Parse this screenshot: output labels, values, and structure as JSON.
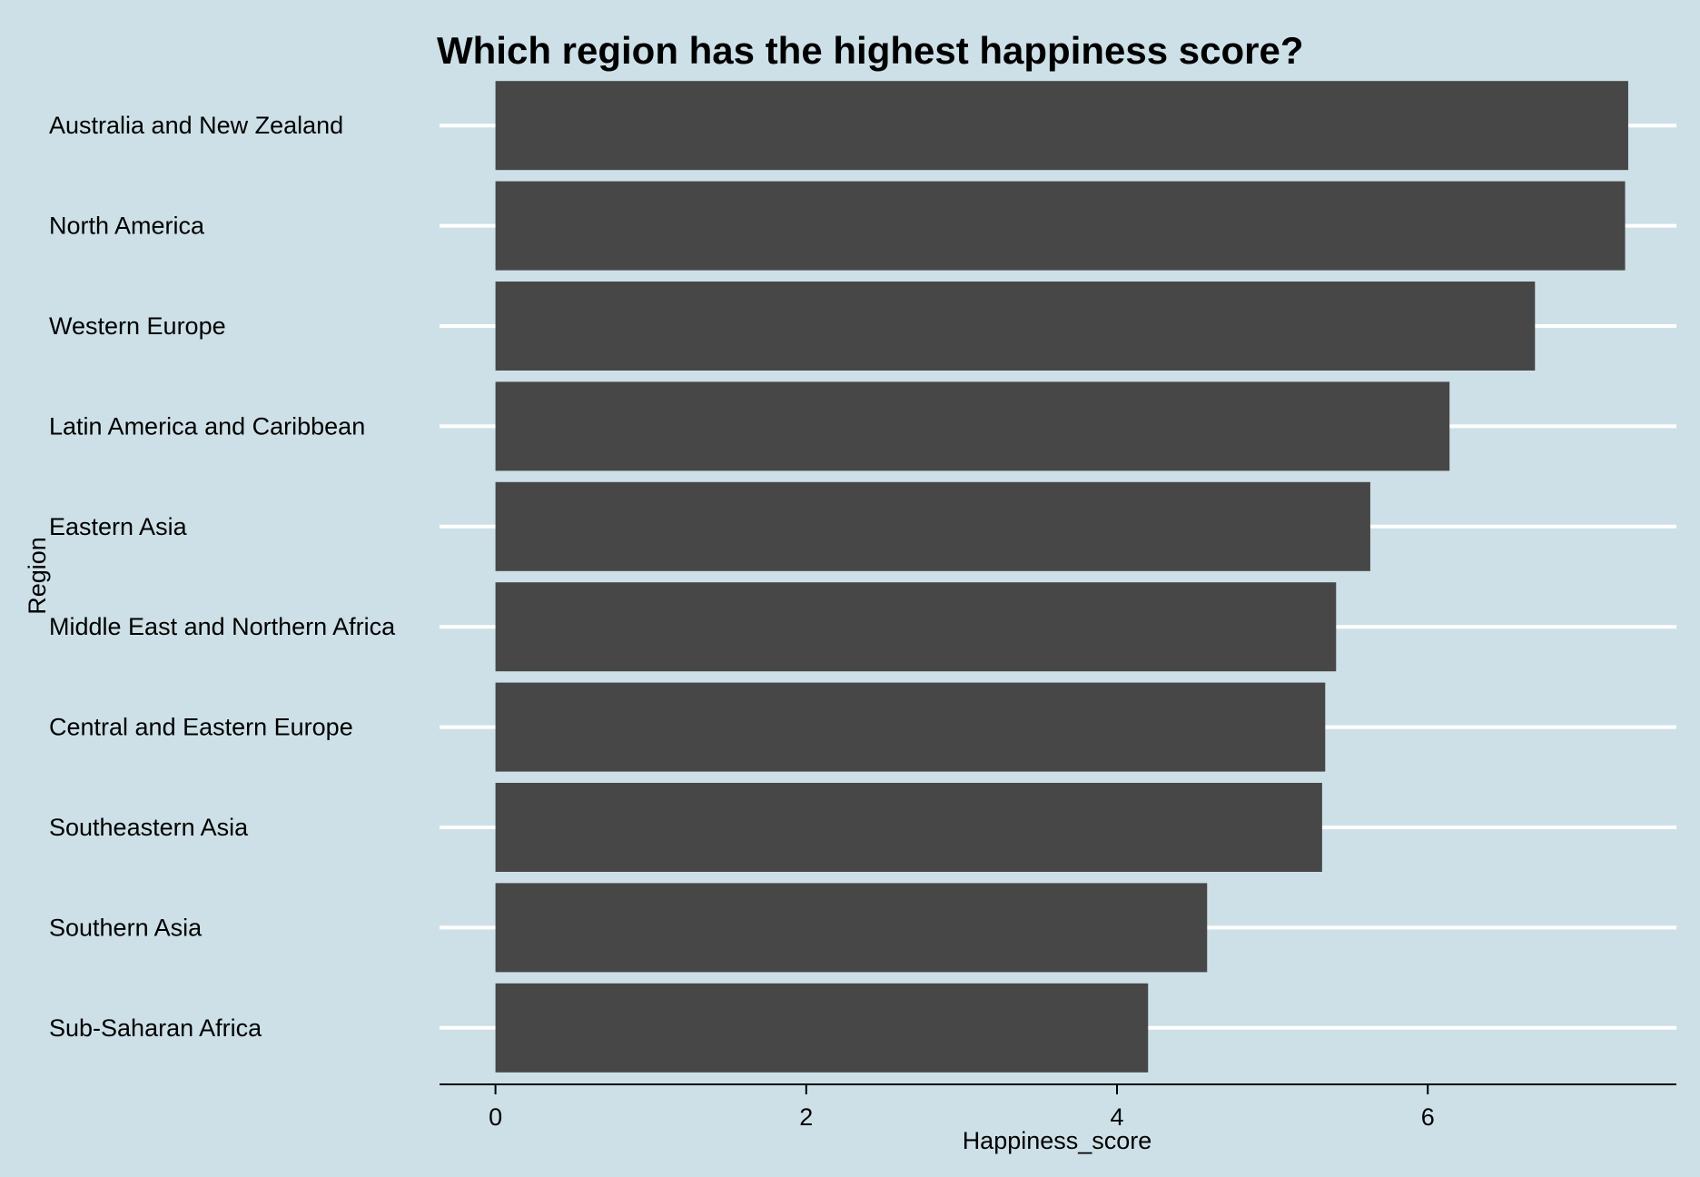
{
  "chart_data": {
    "type": "bar",
    "orientation": "horizontal",
    "title": "Which region has the highest happiness score?",
    "xlabel": "Happiness_score",
    "ylabel": "Region",
    "xlim": [
      -0.36,
      7.6
    ],
    "xticks": [
      0,
      2,
      4,
      6
    ],
    "grid": "horizontal major lines",
    "legend": "none",
    "categories": [
      "Australia and New Zealand",
      "North America",
      "Western Europe",
      "Latin America and Caribbean",
      "Eastern Asia",
      "Middle East and Northern Africa",
      "Central and Eastern Europe",
      "Southeastern Asia",
      "Southern Asia",
      "Sub-Saharan Africa"
    ],
    "values": [
      7.29,
      7.27,
      6.69,
      6.14,
      5.63,
      5.41,
      5.34,
      5.32,
      4.58,
      4.2
    ],
    "colors": {
      "background": "#cde0e7",
      "bar": "#474747",
      "grid": "#ffffff",
      "axis": "#000000"
    }
  }
}
